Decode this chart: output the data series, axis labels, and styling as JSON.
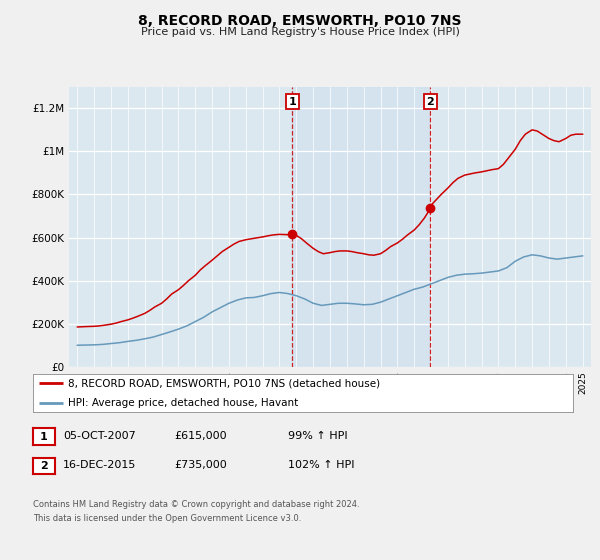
{
  "title": "8, RECORD ROAD, EMSWORTH, PO10 7NS",
  "subtitle": "Price paid vs. HM Land Registry's House Price Index (HPI)",
  "fig_bg_color": "#f0f0f0",
  "plot_bg_color": "#dce8f0",
  "ylim": [
    0,
    1300000
  ],
  "yticks": [
    0,
    200000,
    400000,
    600000,
    800000,
    1000000,
    1200000
  ],
  "ytick_labels": [
    "£0",
    "£200K",
    "£400K",
    "£600K",
    "£800K",
    "£1M",
    "£1.2M"
  ],
  "sale1_x": 2007.76,
  "sale1_y": 615000,
  "sale1_label": "1",
  "sale2_x": 2015.96,
  "sale2_y": 735000,
  "sale2_label": "2",
  "red_line_color": "#cc0000",
  "blue_line_color": "#6699bb",
  "marker_color": "#cc0000",
  "vline_color": "#cc0000",
  "legend_entry1": "8, RECORD ROAD, EMSWORTH, PO10 7NS (detached house)",
  "legend_entry2": "HPI: Average price, detached house, Havant",
  "table_row1": [
    "1",
    "05-OCT-2007",
    "£615,000",
    "99% ↑ HPI"
  ],
  "table_row2": [
    "2",
    "16-DEC-2015",
    "£735,000",
    "102% ↑ HPI"
  ],
  "footnote1": "Contains HM Land Registry data © Crown copyright and database right 2024.",
  "footnote2": "This data is licensed under the Open Government Licence v3.0.",
  "xmin": 1994.5,
  "xmax": 2025.5
}
